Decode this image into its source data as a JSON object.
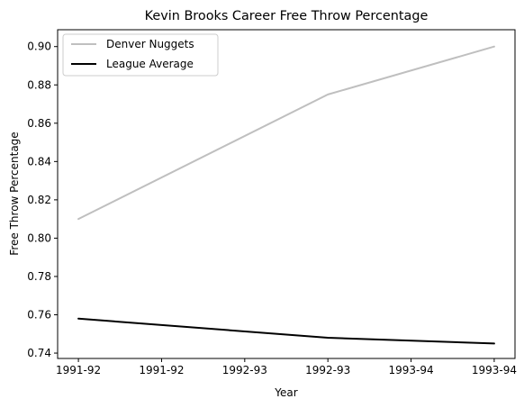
{
  "chart_data": {
    "type": "line",
    "title": "Kevin Brooks  Career Free Throw Percentage",
    "xlabel": "Year",
    "ylabel": "Free Throw Percentage",
    "x": [
      0,
      1,
      2
    ],
    "x_tick_labels": [
      "1991-92",
      "1991-92",
      "1992-93",
      "1992-93",
      "1993-94",
      "1993-94"
    ],
    "x_tick_values": [
      0,
      0.4,
      0.8,
      1.2,
      1.6,
      2.0
    ],
    "xlim": [
      -0.1,
      2.1
    ],
    "ylim": [
      0.7372,
      0.9088
    ],
    "y_ticks": [
      0.74,
      0.76,
      0.78,
      0.8,
      0.82,
      0.84,
      0.86,
      0.88,
      0.9
    ],
    "y_tick_labels": [
      "0.74",
      "0.76",
      "0.78",
      "0.80",
      "0.82",
      "0.84",
      "0.86",
      "0.88",
      "0.90"
    ],
    "grid": false,
    "legend_position": "top-left",
    "series": [
      {
        "name": "Denver Nuggets",
        "color": "#bfbfbf",
        "x": [
          0,
          1.2,
          2.0
        ],
        "values": [
          0.81,
          0.875,
          0.9
        ]
      },
      {
        "name": "League Average",
        "color": "#000000",
        "x": [
          0,
          1.2,
          2.0
        ],
        "values": [
          0.758,
          0.748,
          0.745
        ]
      }
    ]
  }
}
